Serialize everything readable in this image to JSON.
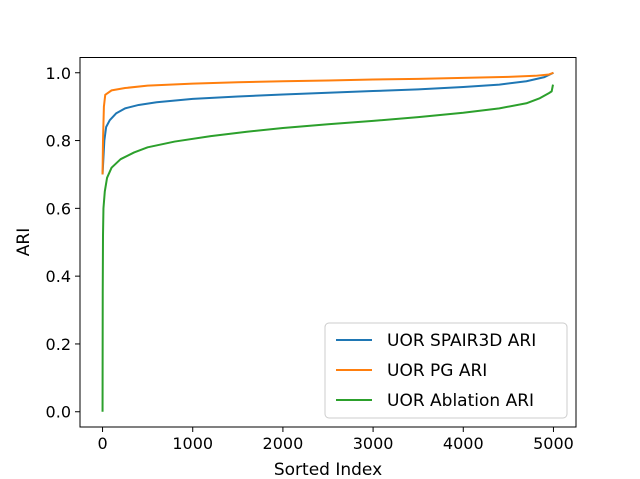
{
  "chart_data": {
    "type": "line",
    "xlabel": "Sorted Index",
    "ylabel": "ARI",
    "xlim": [
      -250,
      5250
    ],
    "ylim": [
      -0.045,
      1.045
    ],
    "xticks": [
      0,
      1000,
      2000,
      3000,
      4000,
      5000
    ],
    "xtick_labels": [
      "0",
      "1000",
      "2000",
      "3000",
      "4000",
      "5000"
    ],
    "yticks": [
      0.0,
      0.2,
      0.4,
      0.6,
      0.8,
      1.0
    ],
    "ytick_labels": [
      "0.0",
      "0.2",
      "0.4",
      "0.6",
      "0.8",
      "1.0"
    ],
    "grid": false,
    "legend_position": "lower-right",
    "series": [
      {
        "name": "UOR SPAIR3D ARI",
        "color": "#1f77b4",
        "points": [
          [
            0,
            0.7
          ],
          [
            10,
            0.75
          ],
          [
            20,
            0.8
          ],
          [
            40,
            0.84
          ],
          [
            80,
            0.86
          ],
          [
            150,
            0.88
          ],
          [
            250,
            0.895
          ],
          [
            400,
            0.905
          ],
          [
            600,
            0.913
          ],
          [
            1000,
            0.923
          ],
          [
            1500,
            0.93
          ],
          [
            2000,
            0.936
          ],
          [
            2500,
            0.941
          ],
          [
            3000,
            0.946
          ],
          [
            3500,
            0.951
          ],
          [
            4000,
            0.958
          ],
          [
            4400,
            0.965
          ],
          [
            4700,
            0.975
          ],
          [
            4900,
            0.987
          ],
          [
            5000,
            1.0
          ]
        ]
      },
      {
        "name": "UOR PG ARI",
        "color": "#ff7f0e",
        "points": [
          [
            0,
            0.7
          ],
          [
            5,
            0.8
          ],
          [
            15,
            0.9
          ],
          [
            30,
            0.935
          ],
          [
            100,
            0.948
          ],
          [
            250,
            0.955
          ],
          [
            500,
            0.962
          ],
          [
            1000,
            0.968
          ],
          [
            1500,
            0.972
          ],
          [
            2000,
            0.975
          ],
          [
            2500,
            0.977
          ],
          [
            3000,
            0.98
          ],
          [
            3500,
            0.982
          ],
          [
            4000,
            0.985
          ],
          [
            4500,
            0.988
          ],
          [
            4800,
            0.991
          ],
          [
            4950,
            0.995
          ],
          [
            5000,
            1.0
          ]
        ]
      },
      {
        "name": "UOR Ablation ARI",
        "color": "#2ca02c",
        "points": [
          [
            0,
            0.0
          ],
          [
            2,
            0.35
          ],
          [
            5,
            0.52
          ],
          [
            10,
            0.6
          ],
          [
            25,
            0.65
          ],
          [
            50,
            0.69
          ],
          [
            100,
            0.72
          ],
          [
            200,
            0.745
          ],
          [
            350,
            0.765
          ],
          [
            500,
            0.78
          ],
          [
            800,
            0.797
          ],
          [
            1200,
            0.813
          ],
          [
            1600,
            0.826
          ],
          [
            2000,
            0.837
          ],
          [
            2500,
            0.848
          ],
          [
            3000,
            0.858
          ],
          [
            3500,
            0.869
          ],
          [
            4000,
            0.882
          ],
          [
            4400,
            0.895
          ],
          [
            4700,
            0.91
          ],
          [
            4850,
            0.925
          ],
          [
            4950,
            0.94
          ],
          [
            4980,
            0.945
          ],
          [
            4995,
            0.965
          ]
        ]
      }
    ]
  }
}
